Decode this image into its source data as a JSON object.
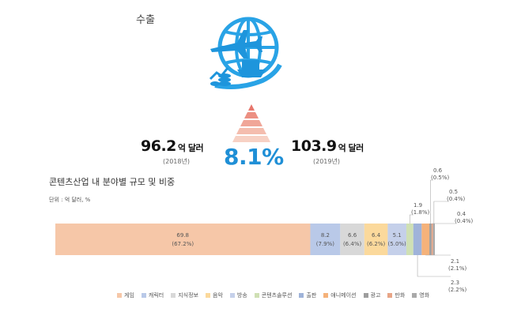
{
  "header": {
    "section_label": "수출",
    "value_2018": "96.2",
    "value_2018_unit": "억 달러",
    "year_2018": "(2018년)",
    "value_2019": "103.9",
    "value_2019_unit": "억 달러",
    "year_2019": "(2019년)",
    "growth_rate": "8.1%",
    "icon": "globe-plane-ship-icon",
    "growth_icon": "pyramid-icon"
  },
  "chart_data": {
    "type": "bar",
    "title": "콘텐츠산업 내 분야별 규모 및 비중",
    "unit_label": "단위 : 억 달러, %",
    "orientation": "horizontal-stacked",
    "total": 103.9,
    "segments": [
      {
        "name": "게임",
        "value": 69.8,
        "share": "(67.2%)",
        "color": "#f6c7a8",
        "label_pos": "inside"
      },
      {
        "name": "캐릭터",
        "value": 8.2,
        "share": "(7.9%)",
        "color": "#b9c9e8",
        "label_pos": "inside"
      },
      {
        "name": "지식정보",
        "value": 6.6,
        "share": "(6.4%)",
        "color": "#d8d8d8",
        "label_pos": "inside"
      },
      {
        "name": "음악",
        "value": 6.4,
        "share": "(6.2%)",
        "color": "#fbd99c",
        "label_pos": "inside"
      },
      {
        "name": "방송",
        "value": 5.1,
        "share": "(5.0%)",
        "color": "#c5d0ea",
        "label_pos": "inside"
      },
      {
        "name": "콘텐츠솔루션",
        "value": 1.9,
        "share": "(1.8%)",
        "color": "#cfe0b4",
        "label_pos": "callout"
      },
      {
        "name": "출판",
        "value": 2.3,
        "share": "(2.2%)",
        "color": "#9fb3d9",
        "label_pos": "callout"
      },
      {
        "name": "애니메이션",
        "value": 2.1,
        "share": "(2.1%)",
        "color": "#f5b27a",
        "label_pos": "callout"
      },
      {
        "name": "광고",
        "value": 0.6,
        "share": "(0.5%)",
        "color": "#9e9e9e",
        "label_pos": "callout"
      },
      {
        "name": "만화",
        "value": 0.4,
        "share": "(0.4%)",
        "color": "#e8a587",
        "label_pos": "callout"
      },
      {
        "name": "영화",
        "value": 0.5,
        "share": "(0.4%)",
        "color": "#a9a9a9",
        "label_pos": "callout"
      }
    ],
    "legend": [
      "게임",
      "캐릭터",
      "지식정보",
      "음악",
      "방송",
      "콘텐츠솔루션",
      "출판",
      "애니메이션",
      "광고",
      "만화",
      "영화"
    ],
    "legend_colors": [
      "#f6c7a8",
      "#b9c9e8",
      "#d8d8d8",
      "#fbd99c",
      "#c5d0ea",
      "#cfe0b4",
      "#9fb3d9",
      "#f5b27a",
      "#9e9e9e",
      "#e8a587",
      "#a9a9a9"
    ]
  }
}
